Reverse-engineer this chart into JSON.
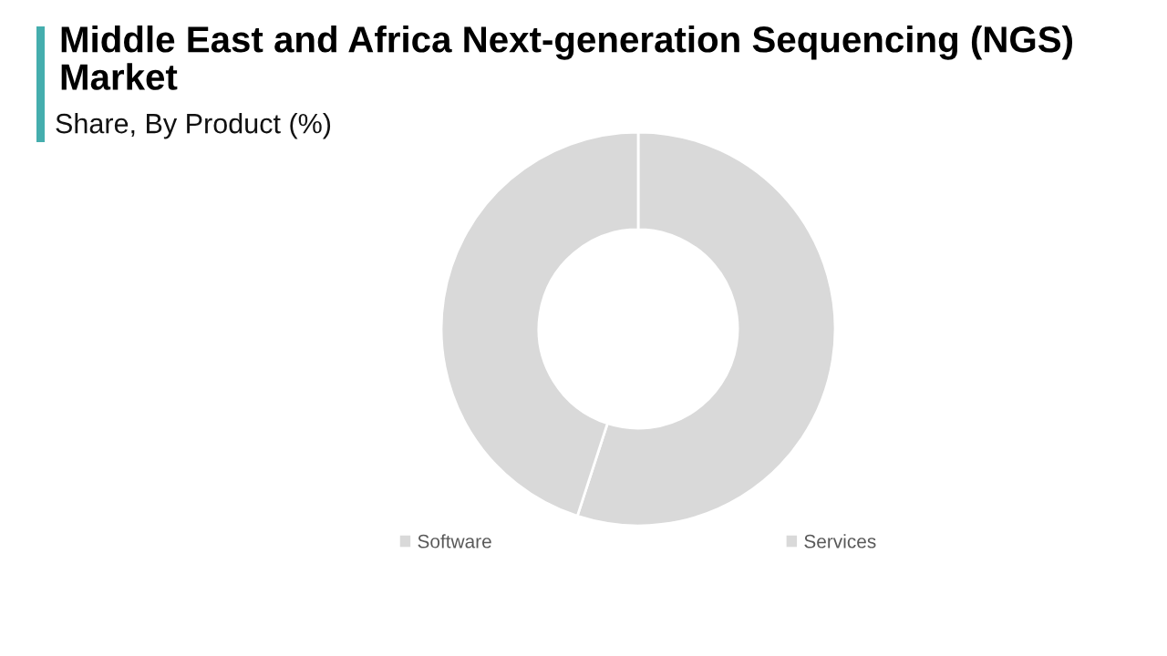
{
  "chart_data": {
    "type": "donut",
    "title": "Middle East and Africa Next-generation Sequencing (NGS) Market",
    "subtitle": "Share, By Product (%)",
    "categories": [
      "Software",
      "Services"
    ],
    "values": [
      55,
      45
    ],
    "colors": [
      "#d9d9d9",
      "#d9d9d9"
    ],
    "legend": "bottom"
  }
}
